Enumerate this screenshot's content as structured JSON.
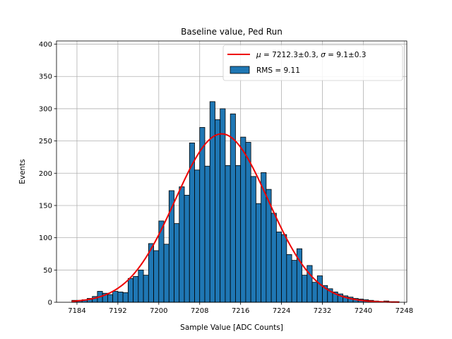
{
  "chart_data": {
    "type": "bar",
    "title": "Baseline value, Ped Run",
    "xlabel": "Sample Value [ADC Counts]",
    "ylabel": "Events",
    "xlim": [
      7180,
      7248.5
    ],
    "ylim": [
      0,
      405
    ],
    "xticks": [
      7184,
      7192,
      7200,
      7208,
      7216,
      7224,
      7232,
      7240,
      7248
    ],
    "yticks": [
      0,
      50,
      100,
      150,
      200,
      250,
      300,
      350,
      400
    ],
    "grid": true,
    "legend_position": "top-right",
    "histogram": {
      "name": "RMS = 9.11",
      "bin_width": 1,
      "bin_start": 7183,
      "counts": [
        3,
        3,
        4,
        6,
        9,
        17,
        14,
        12,
        17,
        16,
        15,
        37,
        40,
        50,
        42,
        91,
        80,
        126,
        90,
        173,
        122,
        179,
        166,
        247,
        205,
        271,
        211,
        311,
        283,
        300,
        212,
        292,
        212,
        256,
        248,
        195,
        153,
        201,
        175,
        138,
        109,
        105,
        74,
        65,
        83,
        42,
        57,
        31,
        41,
        26,
        21,
        16,
        13,
        10,
        8,
        6,
        5,
        4,
        3,
        2,
        1,
        2,
        1,
        1
      ]
    },
    "fit": {
      "name": "μ = 7212.3±0.3, σ = 9.1±0.3",
      "mu": 7212.3,
      "sigma": 9.1,
      "amplitude": 261,
      "color": "#ee0000"
    },
    "bar_color": "#1f77b4",
    "edge_color": "#000000",
    "grid_color": "#b0b0b0"
  },
  "legend": {
    "fit_mu_symbol": "μ",
    "fit_mu_value": " = 7212.3±0.3, ",
    "fit_sigma_symbol": "σ",
    "fit_sigma_value": " = 9.1±0.3",
    "hist_label": "RMS = 9.11"
  }
}
